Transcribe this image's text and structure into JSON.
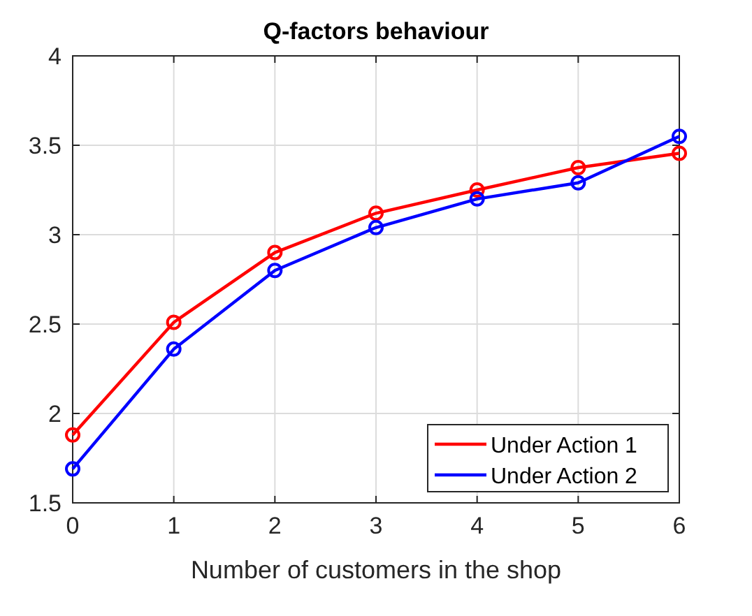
{
  "chart_data": {
    "type": "line",
    "title": "Q-factors behaviour",
    "xlabel": "Number of customers in the shop",
    "x": [
      0,
      1,
      2,
      3,
      4,
      5,
      6
    ],
    "series": [
      {
        "name": "Under Action 1",
        "color": "#ff0000",
        "values": [
          1.88,
          2.51,
          2.9,
          3.12,
          3.25,
          3.375,
          3.455
        ]
      },
      {
        "name": "Under Action 2",
        "color": "#0000ff",
        "values": [
          1.69,
          2.36,
          2.8,
          3.04,
          3.2,
          3.29,
          3.55
        ]
      }
    ],
    "xlim": [
      0,
      6
    ],
    "xticks": [
      0,
      1,
      2,
      3,
      4,
      5,
      6
    ],
    "ylim": [
      1.5,
      4
    ],
    "yticks": [
      1.5,
      2,
      2.5,
      3,
      3.5,
      4
    ],
    "grid": true,
    "legend": "bottom right",
    "marker": "circle",
    "line_style": "solid"
  }
}
